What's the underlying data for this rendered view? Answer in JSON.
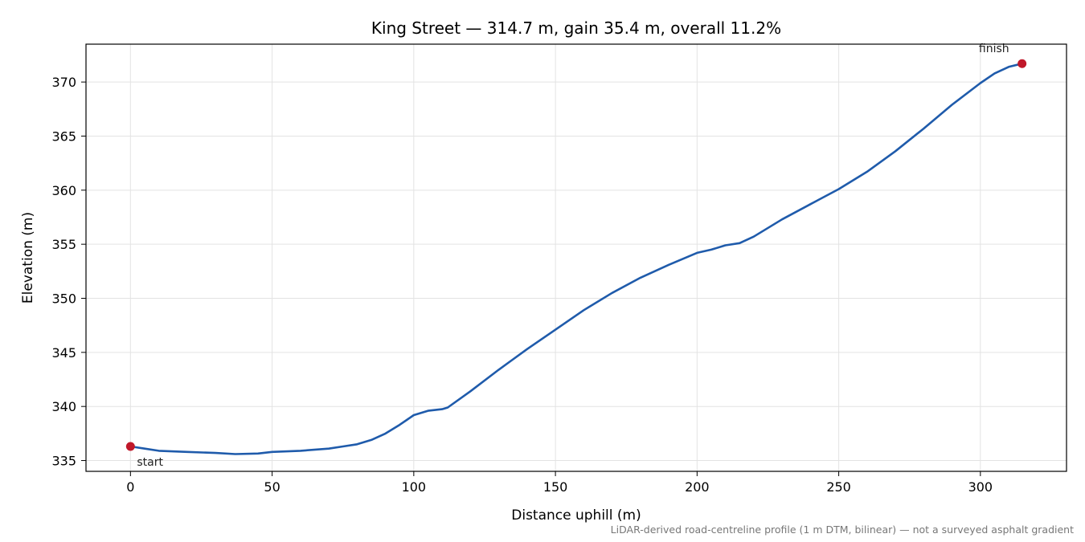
{
  "chart_data": {
    "type": "line",
    "title": "King Street — 314.7 m, gain 35.4 m, overall 11.2%",
    "xlabel": "Distance uphill (m)",
    "ylabel": "Elevation (m)",
    "xlim": [
      -15.7,
      330.4
    ],
    "ylim": [
      334.0,
      373.5
    ],
    "x_ticks": [
      0,
      50,
      100,
      150,
      200,
      250,
      300
    ],
    "y_ticks": [
      335,
      340,
      345,
      350,
      355,
      360,
      365,
      370
    ],
    "grid": true,
    "line_color": "#1f5bab",
    "marker_color": "#c0182a",
    "series": [
      {
        "x": [
          0,
          5,
          10,
          20,
          30,
          37,
          45,
          50,
          60,
          70,
          75,
          80,
          85,
          90,
          95,
          100,
          105,
          110,
          112,
          120,
          130,
          140,
          150,
          160,
          170,
          180,
          190,
          200,
          205,
          210,
          215,
          220,
          230,
          240,
          250,
          260,
          270,
          280,
          290,
          300,
          305,
          310,
          314.7
        ],
        "y": [
          336.3,
          336.1,
          335.9,
          335.8,
          335.7,
          335.6,
          335.65,
          335.8,
          335.9,
          336.1,
          336.3,
          336.5,
          336.9,
          337.5,
          338.3,
          339.2,
          339.6,
          339.75,
          339.9,
          341.4,
          343.4,
          345.3,
          347.1,
          348.9,
          350.5,
          351.9,
          353.1,
          354.2,
          354.5,
          354.9,
          355.1,
          355.7,
          357.3,
          358.7,
          360.1,
          361.7,
          363.6,
          365.7,
          367.9,
          369.9,
          370.8,
          371.4,
          371.7
        ]
      }
    ],
    "annotations": [
      {
        "text": "start",
        "x": 0,
        "y": 336.3
      },
      {
        "text": "finish",
        "x": 314.7,
        "y": 371.7
      }
    ],
    "footnote": "LiDAR-derived road-centreline profile (1 m DTM, bilinear) — not a surveyed asphalt gradient"
  }
}
